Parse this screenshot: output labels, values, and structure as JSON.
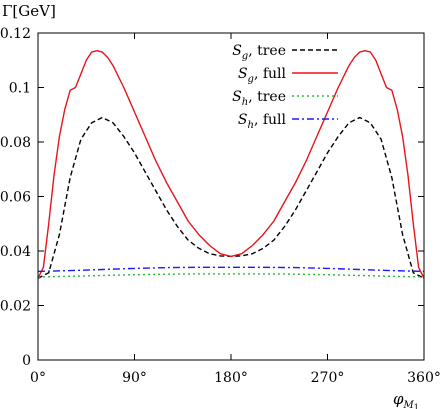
{
  "chart_data": {
    "type": "line",
    "ylabel": "Γ[GeV]",
    "xlabel": "φ_{M1}",
    "xlim": [
      0,
      360
    ],
    "ylim": [
      0,
      0.12
    ],
    "x_ticks": [
      0,
      90,
      180,
      270,
      360
    ],
    "x_tick_labels": [
      "0°",
      "90°",
      "180°",
      "270°",
      "360°"
    ],
    "y_ticks": [
      0,
      0.02,
      0.04,
      0.06,
      0.08,
      0.1,
      0.12
    ],
    "y_tick_labels": [
      "0",
      "0.02",
      "0.04",
      "0.06",
      "0.08",
      "0.1",
      "0.12"
    ],
    "grid": false,
    "legend_position": "top-right",
    "series": [
      {
        "name": "S_g, tree",
        "legend_main": "S",
        "legend_sub": "g",
        "legend_rest": ", tree",
        "color": "#000000",
        "dash": "dashed",
        "x": [
          0,
          10,
          20,
          30,
          40,
          50,
          60,
          70,
          80,
          90,
          100,
          110,
          120,
          130,
          140,
          150,
          160,
          170,
          180,
          190,
          200,
          210,
          220,
          230,
          240,
          250,
          260,
          270,
          280,
          290,
          300,
          310,
          320,
          330,
          340,
          350,
          360
        ],
        "y": [
          0.03,
          0.032,
          0.046,
          0.067,
          0.081,
          0.087,
          0.089,
          0.087,
          0.082,
          0.076,
          0.069,
          0.062,
          0.055,
          0.049,
          0.044,
          0.041,
          0.039,
          0.0382,
          0.038,
          0.0382,
          0.039,
          0.041,
          0.044,
          0.049,
          0.055,
          0.062,
          0.069,
          0.076,
          0.082,
          0.087,
          0.089,
          0.087,
          0.081,
          0.067,
          0.046,
          0.032,
          0.03
        ]
      },
      {
        "name": "S_g, full",
        "legend_main": "S",
        "legend_sub": "g",
        "legend_rest": ", full",
        "color": "#e8141b",
        "dash": "solid",
        "x": [
          0,
          5,
          10,
          15,
          20,
          25,
          30,
          35,
          40,
          45,
          50,
          55,
          60,
          65,
          70,
          80,
          90,
          100,
          110,
          120,
          130,
          140,
          150,
          160,
          170,
          180,
          190,
          200,
          210,
          220,
          230,
          240,
          250,
          260,
          270,
          280,
          290,
          295,
          300,
          305,
          310,
          315,
          320,
          325,
          330,
          335,
          340,
          345,
          350,
          355,
          360
        ],
        "y": [
          0.03,
          0.034,
          0.05,
          0.068,
          0.082,
          0.092,
          0.099,
          0.1,
          0.105,
          0.11,
          0.113,
          0.1135,
          0.113,
          0.111,
          0.108,
          0.1,
          0.091,
          0.082,
          0.073,
          0.065,
          0.058,
          0.051,
          0.046,
          0.042,
          0.039,
          0.038,
          0.039,
          0.042,
          0.046,
          0.051,
          0.058,
          0.065,
          0.073,
          0.082,
          0.091,
          0.1,
          0.108,
          0.111,
          0.113,
          0.1135,
          0.113,
          0.11,
          0.105,
          0.1,
          0.099,
          0.092,
          0.082,
          0.068,
          0.05,
          0.034,
          0.03
        ]
      },
      {
        "name": "S_h, tree",
        "legend_main": "S",
        "legend_sub": "h",
        "legend_rest": ", tree",
        "color": "#2eb82e",
        "dash": "dotted",
        "x": [
          0,
          30,
          60,
          90,
          120,
          150,
          180,
          210,
          240,
          270,
          300,
          330,
          360
        ],
        "y": [
          0.0305,
          0.0307,
          0.031,
          0.0313,
          0.0315,
          0.0316,
          0.0316,
          0.0316,
          0.0315,
          0.0313,
          0.031,
          0.0307,
          0.0305
        ]
      },
      {
        "name": "S_h, full",
        "legend_main": "S",
        "legend_sub": "h",
        "legend_rest": ", full",
        "color": "#1a1aff",
        "dash": "dashdot",
        "x": [
          0,
          30,
          60,
          90,
          120,
          150,
          180,
          210,
          240,
          270,
          300,
          330,
          360
        ],
        "y": [
          0.0325,
          0.0328,
          0.0332,
          0.0336,
          0.0339,
          0.034,
          0.034,
          0.034,
          0.0339,
          0.0336,
          0.0332,
          0.0328,
          0.0325
        ]
      }
    ]
  }
}
